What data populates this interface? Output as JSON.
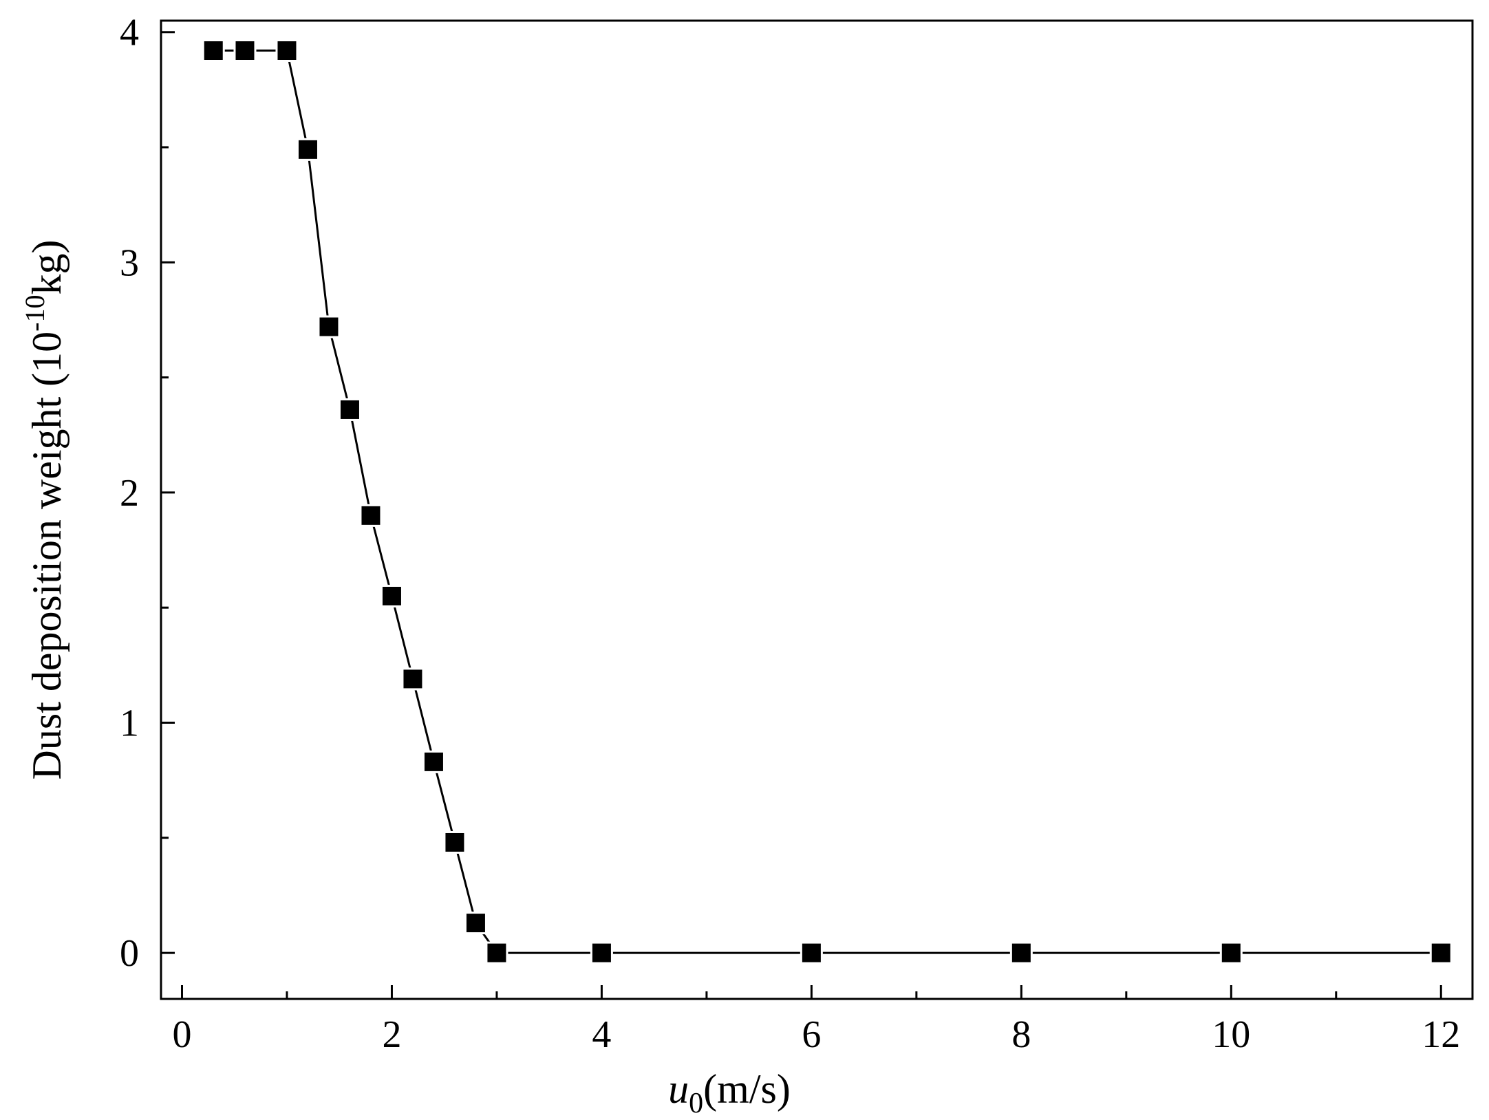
{
  "chart_data": {
    "type": "line",
    "title": "",
    "xlabel_var": "u",
    "xlabel_sub": "0",
    "xlabel_unit": "(m/s)",
    "ylabel_main": "Dust deposition weight (10",
    "ylabel_exp": "-10",
    "ylabel_unit": "kg)",
    "xlim": [
      -0.2,
      12.3
    ],
    "ylim": [
      -0.2,
      4.05
    ],
    "xticks": [
      0,
      2,
      4,
      6,
      8,
      10,
      12
    ],
    "xtick_labels": [
      "0",
      "2",
      "4",
      "6",
      "8",
      "10",
      "12"
    ],
    "xminor": [
      1,
      3,
      5,
      7,
      9,
      11
    ],
    "yticks": [
      0,
      1,
      2,
      3,
      4
    ],
    "ytick_labels": [
      "0",
      "1",
      "2",
      "3",
      "4"
    ],
    "yminor": [
      0.5,
      1.5,
      2.5,
      3.5
    ],
    "legend": "none",
    "grid": false,
    "series": [
      {
        "marker": "square",
        "color": "#000000",
        "x": [
          0.3,
          0.6,
          1.0,
          1.2,
          1.4,
          1.6,
          1.8,
          2.0,
          2.2,
          2.4,
          2.6,
          2.8,
          3.0,
          4.0,
          6.0,
          8.0,
          10.0,
          12.0
        ],
        "y": [
          3.92,
          3.92,
          3.92,
          3.49,
          2.72,
          2.36,
          1.9,
          1.55,
          1.19,
          0.83,
          0.48,
          0.13,
          0.0,
          0.0,
          0.0,
          0.0,
          0.0,
          0.0
        ]
      }
    ]
  }
}
